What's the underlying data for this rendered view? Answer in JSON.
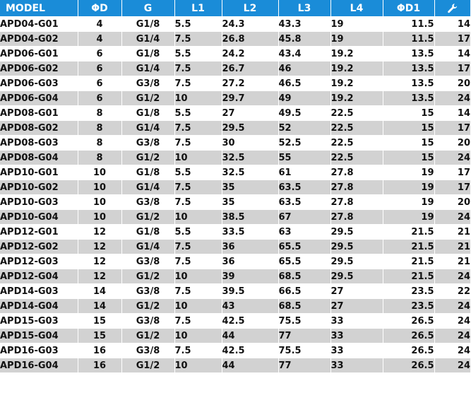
{
  "table": {
    "headers": {
      "model": "MODEL",
      "d": "ΦD",
      "g": "G",
      "l1": "L1",
      "l2": "L2",
      "l3": "L3",
      "l4": "L4",
      "d1": "ΦD1",
      "wrench_icon": "wrench-icon"
    },
    "colors": {
      "header_bg": "#1a8cd8",
      "header_text": "#ffffff",
      "stripe_bg": "#d2d2d2"
    },
    "rows": [
      {
        "model": "APD04-G01",
        "d": "4",
        "g": "G1/8",
        "l1": "5.5",
        "l2": "24.3",
        "l3": "43.3",
        "l4": "19",
        "d1": "11.5",
        "w": "14"
      },
      {
        "model": "APD04-G02",
        "d": "4",
        "g": "G1/4",
        "l1": "7.5",
        "l2": "26.8",
        "l3": "45.8",
        "l4": "19",
        "d1": "11.5",
        "w": "17"
      },
      {
        "model": "APD06-G01",
        "d": "6",
        "g": "G1/8",
        "l1": "5.5",
        "l2": "24.2",
        "l3": "43.4",
        "l4": "19.2",
        "d1": "13.5",
        "w": "14"
      },
      {
        "model": "APD06-G02",
        "d": "6",
        "g": "G1/4",
        "l1": "7.5",
        "l2": "26.7",
        "l3": "46",
        "l4": "19.2",
        "d1": "13.5",
        "w": "17"
      },
      {
        "model": "APD06-G03",
        "d": "6",
        "g": "G3/8",
        "l1": "7.5",
        "l2": "27.2",
        "l3": "46.5",
        "l4": "19.2",
        "d1": "13.5",
        "w": "20"
      },
      {
        "model": "APD06-G04",
        "d": "6",
        "g": "G1/2",
        "l1": "10",
        "l2": "29.7",
        "l3": "49",
        "l4": "19.2",
        "d1": "13.5",
        "w": "24"
      },
      {
        "model": "APD08-G01",
        "d": "8",
        "g": "G1/8",
        "l1": "5.5",
        "l2": "27",
        "l3": "49.5",
        "l4": "22.5",
        "d1": "15",
        "w": "14"
      },
      {
        "model": "APD08-G02",
        "d": "8",
        "g": "G1/4",
        "l1": "7.5",
        "l2": "29.5",
        "l3": "52",
        "l4": "22.5",
        "d1": "15",
        "w": "17"
      },
      {
        "model": "APD08-G03",
        "d": "8",
        "g": "G3/8",
        "l1": "7.5",
        "l2": "30",
        "l3": "52.5",
        "l4": "22.5",
        "d1": "15",
        "w": "20"
      },
      {
        "model": "APD08-G04",
        "d": "8",
        "g": "G1/2",
        "l1": "10",
        "l2": "32.5",
        "l3": "55",
        "l4": "22.5",
        "d1": "15",
        "w": "24"
      },
      {
        "model": "APD10-G01",
        "d": "10",
        "g": "G1/8",
        "l1": "5.5",
        "l2": "32.5",
        "l3": "61",
        "l4": "27.8",
        "d1": "19",
        "w": "17"
      },
      {
        "model": "APD10-G02",
        "d": "10",
        "g": "G1/4",
        "l1": "7.5",
        "l2": "35",
        "l3": "63.5",
        "l4": "27.8",
        "d1": "19",
        "w": "17"
      },
      {
        "model": "APD10-G03",
        "d": "10",
        "g": "G3/8",
        "l1": "7.5",
        "l2": "35",
        "l3": "63.5",
        "l4": "27.8",
        "d1": "19",
        "w": "20"
      },
      {
        "model": "APD10-G04",
        "d": "10",
        "g": "G1/2",
        "l1": "10",
        "l2": "38.5",
        "l3": "67",
        "l4": "27.8",
        "d1": "19",
        "w": "24"
      },
      {
        "model": "APD12-G01",
        "d": "12",
        "g": "G1/8",
        "l1": "5.5",
        "l2": "33.5",
        "l3": "63",
        "l4": "29.5",
        "d1": "21.5",
        "w": "21"
      },
      {
        "model": "APD12-G02",
        "d": "12",
        "g": "G1/4",
        "l1": "7.5",
        "l2": "36",
        "l3": "65.5",
        "l4": "29.5",
        "d1": "21.5",
        "w": "21"
      },
      {
        "model": "APD12-G03",
        "d": "12",
        "g": "G3/8",
        "l1": "7.5",
        "l2": "36",
        "l3": "65.5",
        "l4": "29.5",
        "d1": "21.5",
        "w": "21"
      },
      {
        "model": "APD12-G04",
        "d": "12",
        "g": "G1/2",
        "l1": "10",
        "l2": "39",
        "l3": "68.5",
        "l4": "29.5",
        "d1": "21.5",
        "w": "24"
      },
      {
        "model": "APD14-G03",
        "d": "14",
        "g": "G3/8",
        "l1": "7.5",
        "l2": "39.5",
        "l3": "66.5",
        "l4": "27",
        "d1": "23.5",
        "w": "22"
      },
      {
        "model": "APD14-G04",
        "d": "14",
        "g": "G1/2",
        "l1": "10",
        "l2": "43",
        "l3": "68.5",
        "l4": "27",
        "d1": "23.5",
        "w": "24"
      },
      {
        "model": "APD15-G03",
        "d": "15",
        "g": "G3/8",
        "l1": "7.5",
        "l2": "42.5",
        "l3": "75.5",
        "l4": "33",
        "d1": "26.5",
        "w": "24"
      },
      {
        "model": "APD15-G04",
        "d": "15",
        "g": "G1/2",
        "l1": "10",
        "l2": "44",
        "l3": "77",
        "l4": "33",
        "d1": "26.5",
        "w": "24"
      },
      {
        "model": "APD16-G03",
        "d": "16",
        "g": "G3/8",
        "l1": "7.5",
        "l2": "42.5",
        "l3": "75.5",
        "l4": "33",
        "d1": "26.5",
        "w": "24"
      },
      {
        "model": "APD16-G04",
        "d": "16",
        "g": "G1/2",
        "l1": "10",
        "l2": "44",
        "l3": "77",
        "l4": "33",
        "d1": "26.5",
        "w": "24"
      }
    ]
  }
}
